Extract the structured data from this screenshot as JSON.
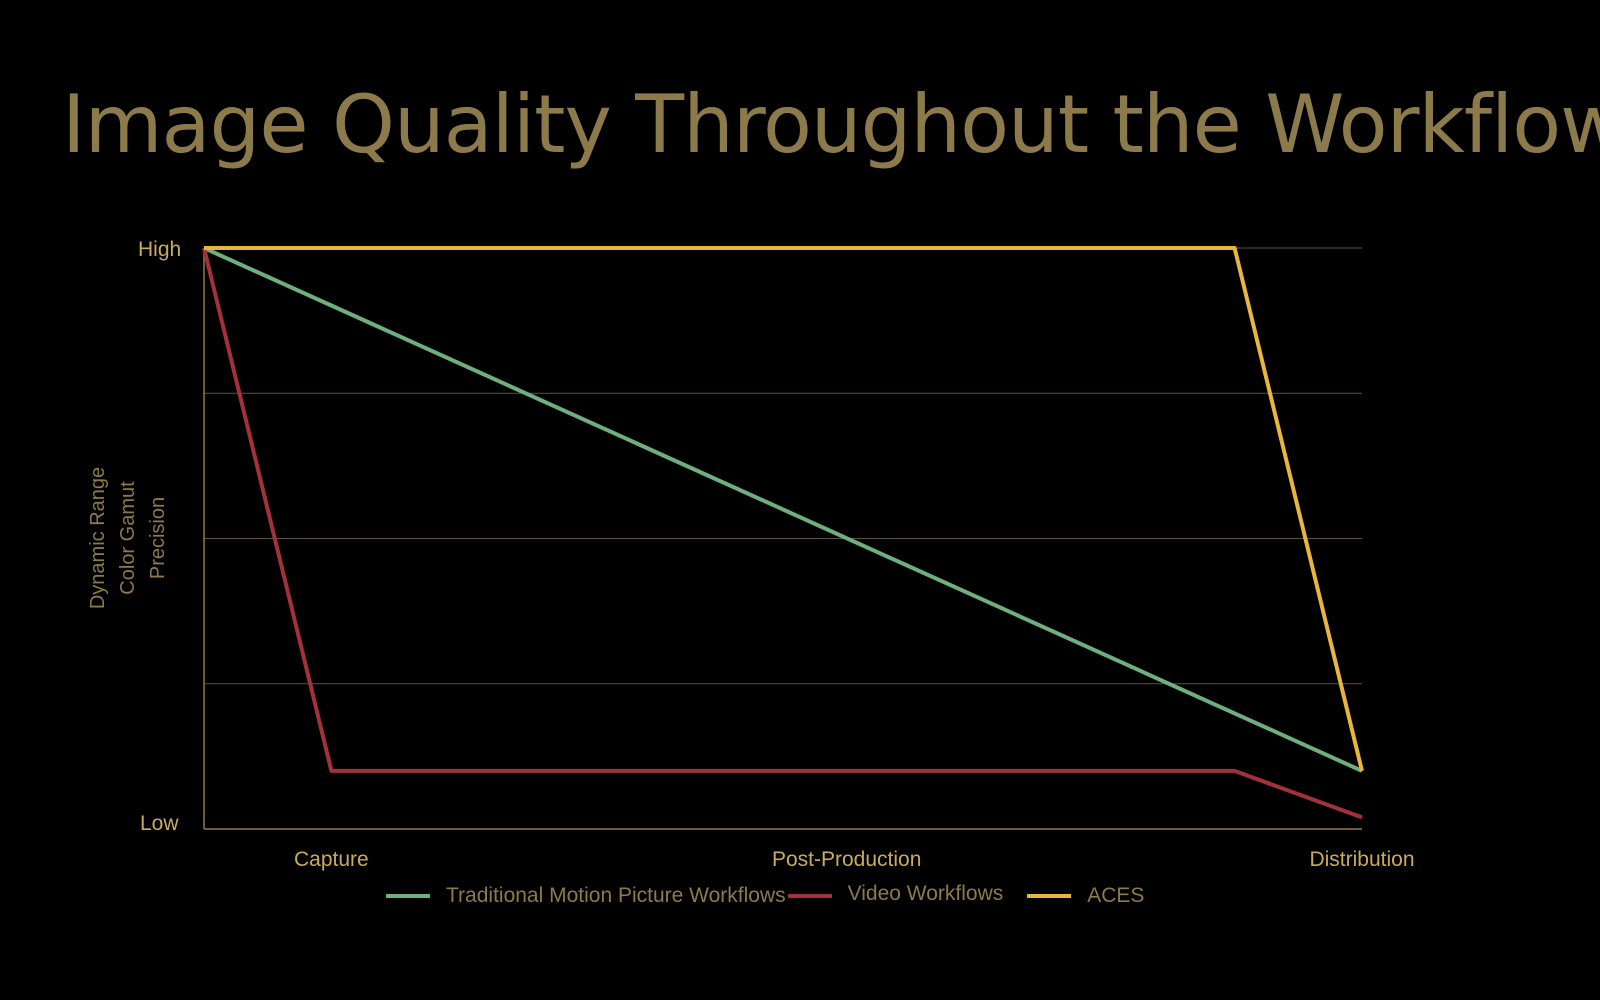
{
  "slide": {
    "title": "Image Quality Throughout the Workflow"
  },
  "chart_data": {
    "type": "line",
    "title": "Image Quality Throughout the Workflow",
    "ylabel_lines": [
      "Dynamic Range",
      "Color Gamut",
      "Precision"
    ],
    "y_tick_labels": {
      "high": "High",
      "low": "Low"
    },
    "x_tick_labels": [
      "Capture",
      "Post-Production",
      "Distribution"
    ],
    "x_tick_positions": [
      0.11,
      0.555,
      1.0
    ],
    "xlim": [
      0,
      1
    ],
    "ylim": [
      0,
      1
    ],
    "grid": true,
    "legend_position": "bottom",
    "series": [
      {
        "name": "Traditional Motion Picture Workflows",
        "color": "#6fae7e",
        "x": [
          0,
          1
        ],
        "y": [
          1.0,
          0.1
        ]
      },
      {
        "name": "Video Workflows",
        "color": "#a3313a",
        "x": [
          0,
          0.11,
          0.89,
          1.0
        ],
        "y": [
          1.0,
          0.1,
          0.1,
          0.02
        ]
      },
      {
        "name": "ACES",
        "color": "#e8b63c",
        "x": [
          0,
          0.89,
          1.0
        ],
        "y": [
          1.0,
          1.0,
          0.1
        ]
      }
    ],
    "colors": {
      "grid": "#5e5233",
      "axis": "#8c7a4b",
      "label": "#c9ab5a",
      "title": "#8c7a4b"
    }
  }
}
